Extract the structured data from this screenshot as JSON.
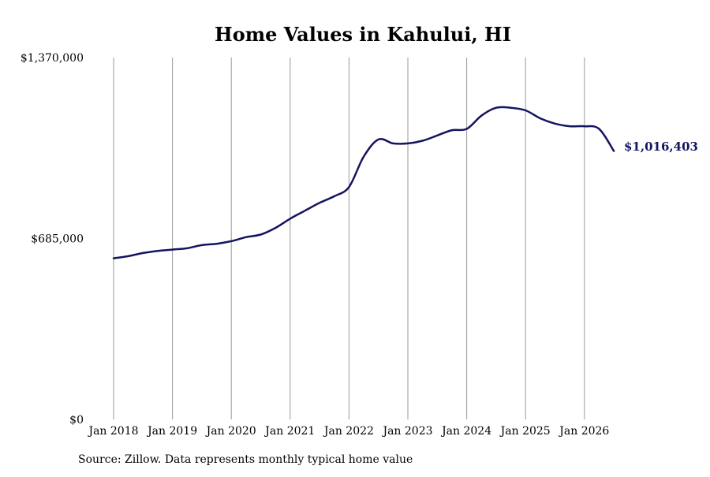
{
  "chart_data": {
    "type": "line",
    "title": "Home Values in Kahului, HI",
    "xlabel": "",
    "ylabel": "",
    "ylim": [
      0,
      1370000
    ],
    "y_ticks": [
      {
        "value": 0,
        "label": "$0"
      },
      {
        "value": 685000,
        "label": "$685,000"
      },
      {
        "value": 1370000,
        "label": "$1,370,000"
      }
    ],
    "x_ticks": [
      "Jan 2018",
      "Jan 2019",
      "Jan 2020",
      "Jan 2021",
      "Jan 2022",
      "Jan 2023",
      "Jan 2024",
      "Jan 2025",
      "Jan 2026"
    ],
    "grid": "vertical",
    "end_label": "$1,016,403",
    "source": "Source: Zillow. Data represents monthly typical home value",
    "colors": {
      "line": "#141460",
      "grid": "#9a9a9a",
      "label": "#141460"
    },
    "series": [
      {
        "x": [
          "2018-01",
          "2018-04",
          "2018-07",
          "2018-10",
          "2019-01",
          "2019-04",
          "2019-07",
          "2019-10",
          "2020-01",
          "2020-04",
          "2020-07",
          "2020-10",
          "2021-01",
          "2021-04",
          "2021-07",
          "2021-10",
          "2022-01",
          "2022-04",
          "2022-07",
          "2022-10",
          "2023-01",
          "2023-04",
          "2023-07",
          "2023-10",
          "2024-01",
          "2024-04",
          "2024-07",
          "2024-10",
          "2025-01",
          "2025-04",
          "2025-07",
          "2025-10",
          "2026-01",
          "2026-04",
          "2026-07"
        ],
        "values": [
          610000,
          618000,
          630000,
          638000,
          643000,
          648000,
          660000,
          665000,
          675000,
          690000,
          700000,
          725000,
          760000,
          790000,
          820000,
          845000,
          880000,
          995000,
          1060000,
          1045000,
          1045000,
          1055000,
          1075000,
          1095000,
          1100000,
          1150000,
          1180000,
          1180000,
          1170000,
          1140000,
          1120000,
          1110000,
          1110000,
          1100000,
          1016403
        ]
      }
    ]
  }
}
